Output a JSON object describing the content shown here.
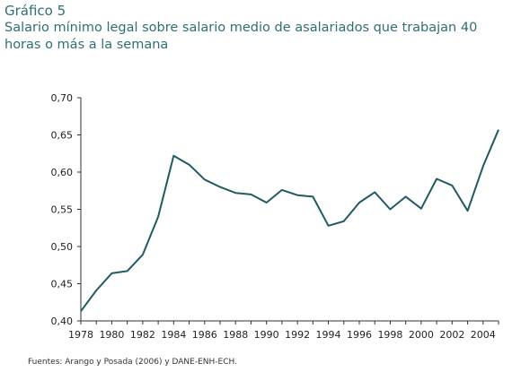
{
  "header": {
    "figure_label": "Gráfico 5",
    "title": "Salario mínimo legal sobre salario medio de asalariados que trabajan 40 horas o más a la semana"
  },
  "source": "Fuentes: Arango y Posada (2006) y DANE-ENH-ECH.",
  "colors": {
    "line": "#1f5b60",
    "title": "#2f6f74",
    "axis": "#333333"
  },
  "chart_data": {
    "type": "line",
    "title": "Salario mínimo legal sobre salario medio de asalariados que trabajan 40 horas o más a la semana",
    "xlabel": "",
    "ylabel": "",
    "xlim": [
      1978,
      2005
    ],
    "ylim": [
      0.4,
      0.7
    ],
    "grid": false,
    "x_ticks": [
      "1978",
      "1980",
      "1982",
      "1984",
      "1986",
      "1988",
      "1990",
      "1992",
      "1994",
      "1996",
      "1998",
      "2000",
      "2002",
      "2004"
    ],
    "y_ticks": [
      "0,40",
      "0,45",
      "0,50",
      "0,55",
      "0,60",
      "0,65",
      "0,70"
    ],
    "series": [
      {
        "x": [
          1978,
          1979,
          1980,
          1981,
          1982,
          1983,
          1984,
          1985,
          1986,
          1987,
          1988,
          1989,
          1990,
          1991,
          1992,
          1993,
          1994,
          1995,
          1996,
          1997,
          1998,
          1999,
          2000,
          2001,
          2002,
          2003,
          2004,
          2005
        ],
        "values": [
          0.413,
          0.441,
          0.464,
          0.467,
          0.489,
          0.54,
          0.622,
          0.61,
          0.59,
          0.58,
          0.572,
          0.57,
          0.559,
          0.576,
          0.569,
          0.567,
          0.528,
          0.534,
          0.559,
          0.573,
          0.55,
          0.567,
          0.551,
          0.591,
          0.582,
          0.548,
          0.608,
          0.657
        ]
      }
    ]
  }
}
